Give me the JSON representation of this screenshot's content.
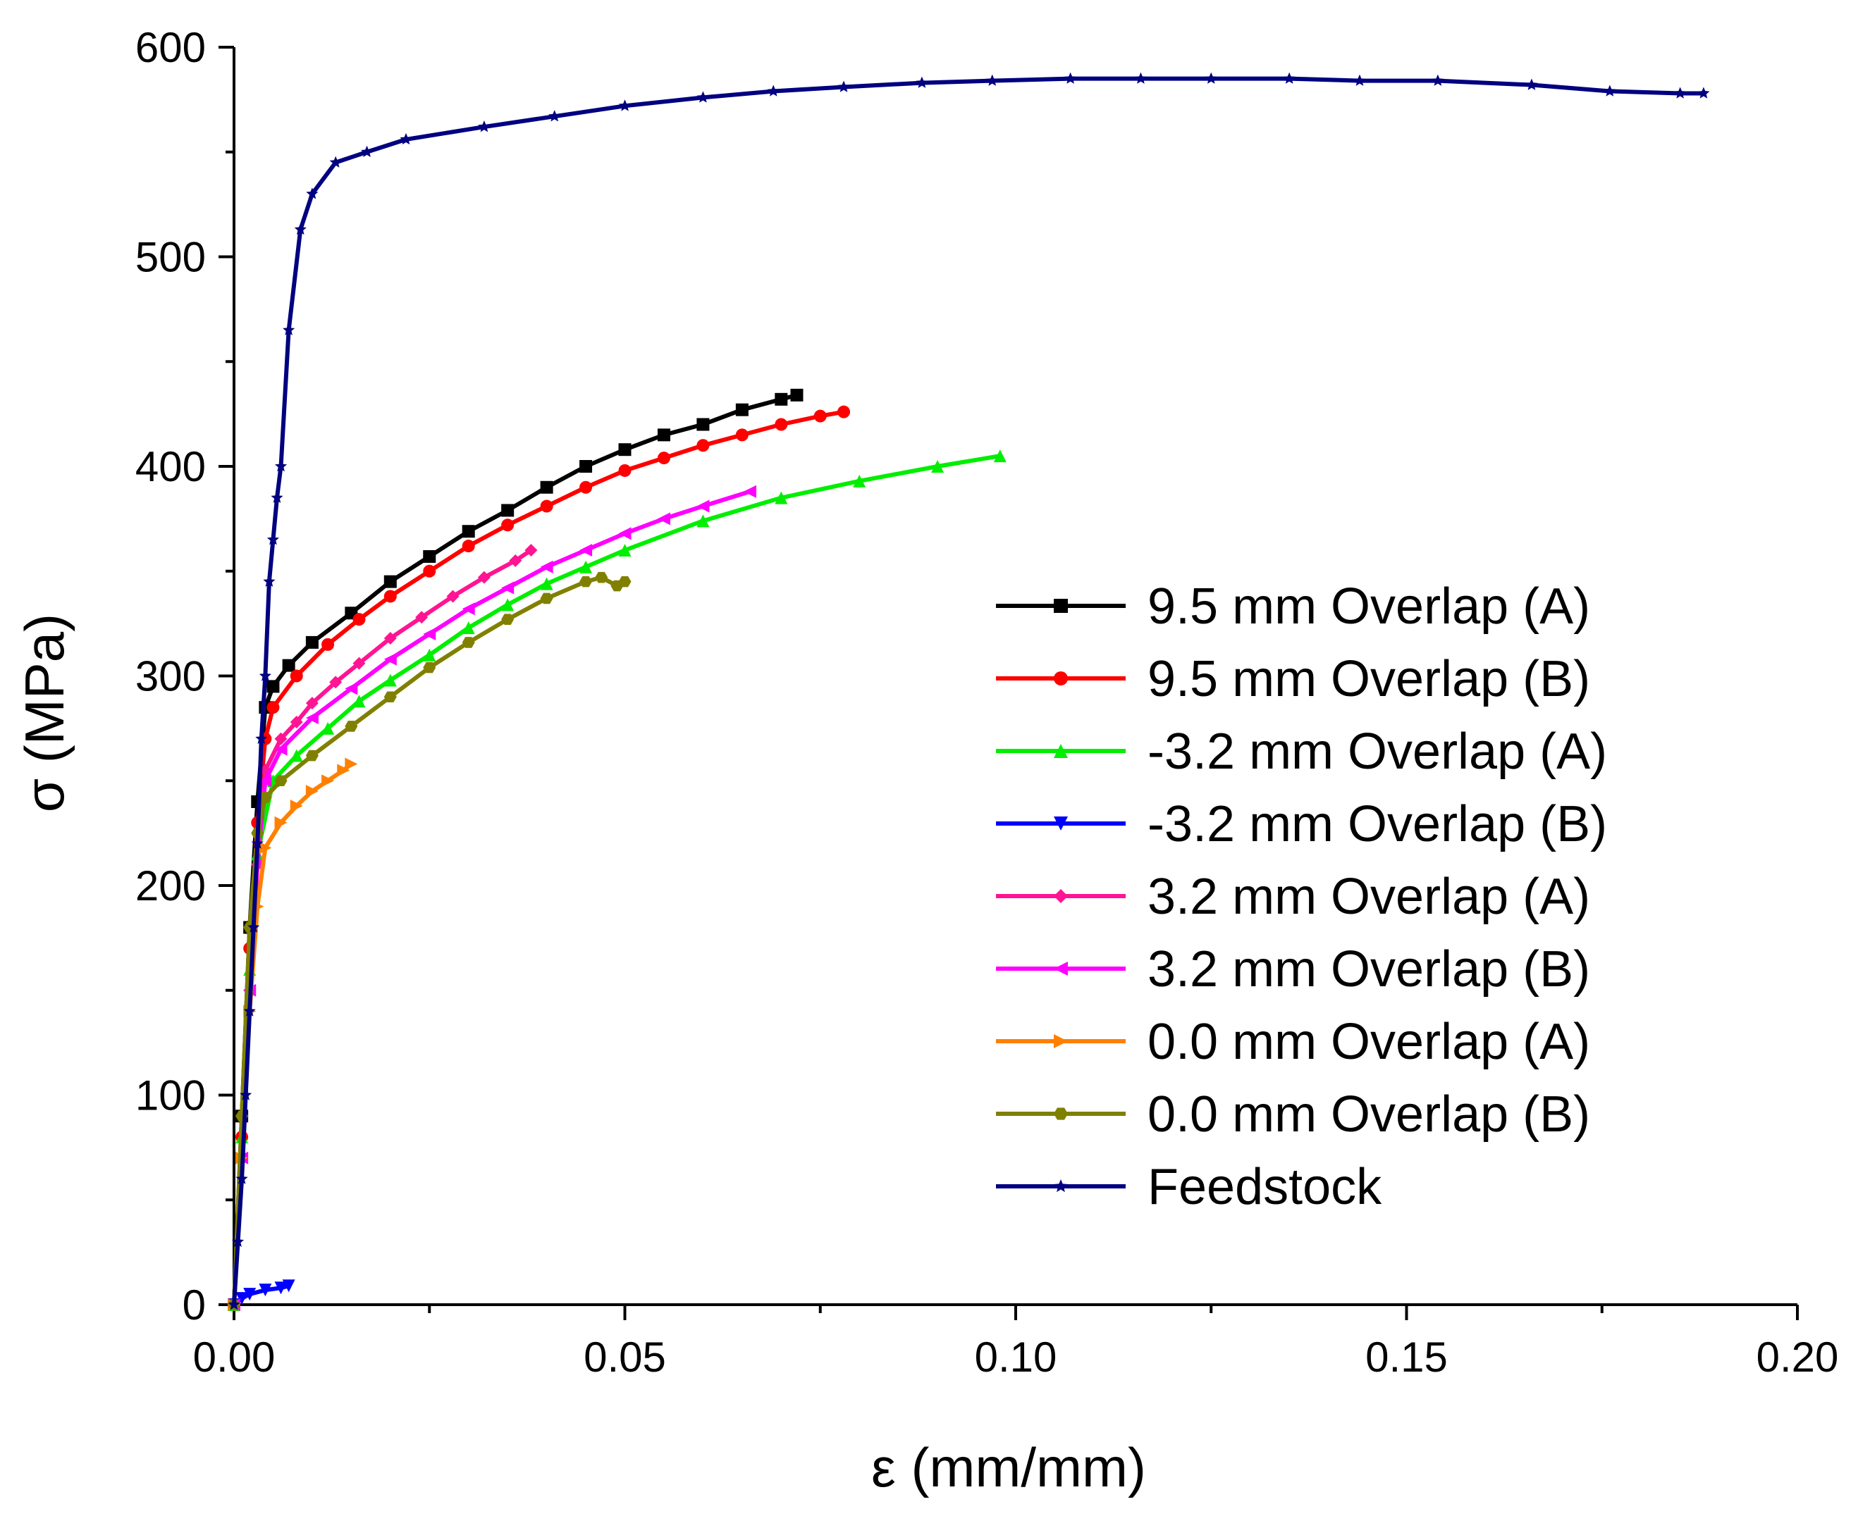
{
  "chart_data": {
    "type": "line",
    "title": "",
    "xlabel": "ε (mm/mm)",
    "ylabel": "σ (MPa)",
    "xlim": [
      0.0,
      0.2
    ],
    "ylim": [
      0,
      600
    ],
    "xticks": [
      0.0,
      0.05,
      0.1,
      0.15,
      0.2
    ],
    "xtick_labels": [
      "0.00",
      "0.05",
      "0.10",
      "0.15",
      "0.20"
    ],
    "yticks": [
      0,
      100,
      200,
      300,
      400,
      500,
      600
    ],
    "ytick_labels": [
      "0",
      "100",
      "200",
      "300",
      "400",
      "500",
      "600"
    ],
    "grid": false,
    "legend_position": "right",
    "series": [
      {
        "name": "9.5 mm Overlap (A)",
        "color": "#000000",
        "marker": "square",
        "x": [
          0,
          0.001,
          0.002,
          0.003,
          0.004,
          0.005,
          0.007,
          0.01,
          0.015,
          0.02,
          0.025,
          0.03,
          0.035,
          0.04,
          0.045,
          0.05,
          0.055,
          0.06,
          0.065,
          0.07,
          0.072
        ],
        "y": [
          0,
          90,
          180,
          240,
          285,
          295,
          305,
          316,
          330,
          345,
          357,
          369,
          379,
          390,
          400,
          408,
          415,
          420,
          427,
          432,
          434
        ]
      },
      {
        "name": "9.5 mm Overlap (B)",
        "color": "#ff0000",
        "marker": "circle",
        "x": [
          0,
          0.001,
          0.002,
          0.003,
          0.004,
          0.005,
          0.008,
          0.012,
          0.016,
          0.02,
          0.025,
          0.03,
          0.035,
          0.04,
          0.045,
          0.05,
          0.055,
          0.06,
          0.065,
          0.07,
          0.075,
          0.078
        ],
        "y": [
          0,
          80,
          170,
          230,
          270,
          285,
          300,
          315,
          327,
          338,
          350,
          362,
          372,
          381,
          390,
          398,
          404,
          410,
          415,
          420,
          424,
          426
        ]
      },
      {
        "name": "-3.2 mm Overlap (A)",
        "color": "#00ee00",
        "marker": "triangle-up",
        "x": [
          0,
          0.001,
          0.002,
          0.003,
          0.005,
          0.008,
          0.012,
          0.016,
          0.02,
          0.025,
          0.03,
          0.035,
          0.04,
          0.045,
          0.05,
          0.06,
          0.07,
          0.08,
          0.09,
          0.098
        ],
        "y": [
          0,
          80,
          160,
          215,
          250,
          262,
          275,
          288,
          298,
          310,
          323,
          334,
          344,
          352,
          360,
          374,
          385,
          393,
          400,
          405
        ]
      },
      {
        "name": "-3.2 mm Overlap (B)",
        "color": "#0000ff",
        "marker": "triangle-down",
        "x": [
          0,
          0.001,
          0.002,
          0.004,
          0.006,
          0.007
        ],
        "y": [
          0,
          3,
          5,
          7,
          8,
          9
        ]
      },
      {
        "name": "3.2 mm Overlap (A)",
        "color": "#ff1493",
        "marker": "diamond",
        "x": [
          0,
          0.001,
          0.002,
          0.003,
          0.004,
          0.006,
          0.008,
          0.01,
          0.013,
          0.016,
          0.02,
          0.024,
          0.028,
          0.032,
          0.036,
          0.038
        ],
        "y": [
          0,
          70,
          150,
          210,
          255,
          270,
          278,
          287,
          297,
          306,
          318,
          328,
          338,
          347,
          355,
          360
        ]
      },
      {
        "name": "3.2 mm Overlap (B)",
        "color": "#ff00ff",
        "marker": "triangle-left",
        "x": [
          0,
          0.001,
          0.002,
          0.003,
          0.004,
          0.006,
          0.01,
          0.015,
          0.02,
          0.025,
          0.03,
          0.035,
          0.04,
          0.045,
          0.05,
          0.055,
          0.06,
          0.066
        ],
        "y": [
          0,
          70,
          150,
          210,
          250,
          265,
          280,
          294,
          308,
          320,
          332,
          342,
          352,
          360,
          368,
          375,
          381,
          388
        ]
      },
      {
        "name": "0.0 mm Overlap (A)",
        "color": "#ff8000",
        "marker": "triangle-right",
        "x": [
          0,
          0.001,
          0.002,
          0.003,
          0.004,
          0.006,
          0.008,
          0.01,
          0.012,
          0.014,
          0.015
        ],
        "y": [
          0,
          70,
          140,
          190,
          218,
          230,
          238,
          245,
          250,
          255,
          258
        ]
      },
      {
        "name": "0.0 mm Overlap (B)",
        "color": "#808000",
        "marker": "hexagon",
        "x": [
          0,
          0.001,
          0.002,
          0.003,
          0.004,
          0.006,
          0.01,
          0.015,
          0.02,
          0.025,
          0.03,
          0.035,
          0.04,
          0.045,
          0.047,
          0.049,
          0.05
        ],
        "y": [
          0,
          90,
          180,
          225,
          242,
          250,
          262,
          276,
          290,
          304,
          316,
          327,
          337,
          345,
          347,
          343,
          345
        ]
      },
      {
        "name": "Feedstock",
        "color": "#000080",
        "marker": "star",
        "x": [
          0,
          0.0005,
          0.001,
          0.0015,
          0.002,
          0.0025,
          0.003,
          0.0035,
          0.004,
          0.0045,
          0.005,
          0.0055,
          0.006,
          0.007,
          0.0085,
          0.01,
          0.013,
          0.017,
          0.022,
          0.032,
          0.041,
          0.05,
          0.06,
          0.069,
          0.078,
          0.088,
          0.097,
          0.107,
          0.116,
          0.125,
          0.135,
          0.144,
          0.154,
          0.166,
          0.176,
          0.185,
          0.188
        ],
        "y": [
          0,
          30,
          60,
          100,
          140,
          180,
          220,
          270,
          300,
          345,
          365,
          385,
          400,
          465,
          513,
          530,
          545,
          550,
          556,
          562,
          567,
          572,
          576,
          579,
          581,
          583,
          584,
          585,
          585,
          585,
          585,
          584,
          584,
          582,
          579,
          578,
          578
        ]
      }
    ]
  }
}
